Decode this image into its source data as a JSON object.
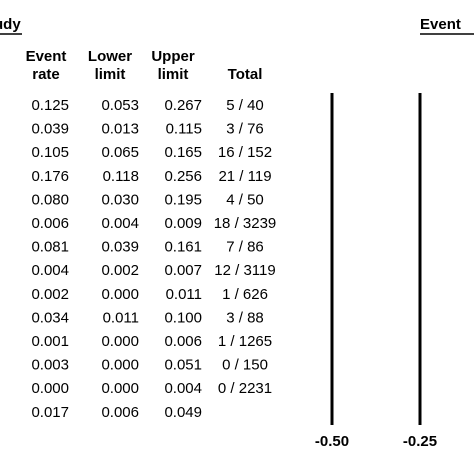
{
  "header": {
    "study": "udy",
    "event": "Event"
  },
  "columns": {
    "rate": [
      "Event",
      "rate"
    ],
    "lower": [
      "Lower",
      "limit"
    ],
    "upper": [
      "Upper",
      "limit"
    ],
    "total": "Total"
  },
  "table": {
    "rows": [
      [
        "0.125",
        "0.053",
        "0.267",
        "5 / 40"
      ],
      [
        "0.039",
        "0.013",
        "0.115",
        "3 / 76"
      ],
      [
        "0.105",
        "0.065",
        "0.165",
        "16 / 152"
      ],
      [
        "0.176",
        "0.118",
        "0.256",
        "21 / 119"
      ],
      [
        "0.080",
        "0.030",
        "0.195",
        "4 / 50"
      ],
      [
        "0.006",
        "0.004",
        "0.009",
        "18 / 3239"
      ],
      [
        "0.081",
        "0.039",
        "0.161",
        "7 / 86"
      ],
      [
        "0.004",
        "0.002",
        "0.007",
        "12 / 3119"
      ],
      [
        "0.002",
        "0.000",
        "0.011",
        "1 / 626"
      ],
      [
        "0.034",
        "0.011",
        "0.100",
        "3 / 88"
      ],
      [
        "0.001",
        "0.000",
        "0.006",
        "1 / 1265"
      ],
      [
        "0.003",
        "0.000",
        "0.051",
        "0 / 150"
      ],
      [
        "0.000",
        "0.000",
        "0.004",
        "0 / 2231"
      ],
      [
        "0.017",
        "0.006",
        "0.049"
      ]
    ]
  },
  "axis": {
    "ticks": [
      {
        "value": -0.5,
        "label": "-0.50"
      },
      {
        "value": -0.25,
        "label": "-0.25"
      }
    ]
  }
}
